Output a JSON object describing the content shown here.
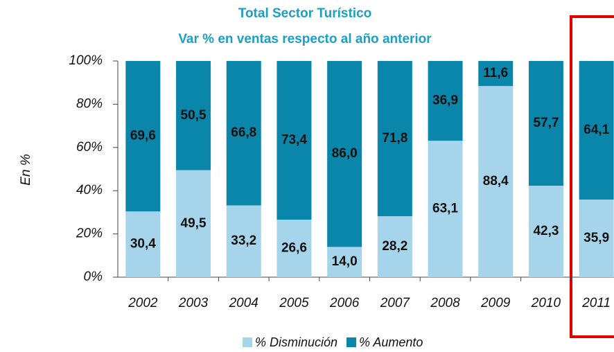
{
  "chart_data": {
    "type": "stacked_bar",
    "title": "Total Sector Turístico",
    "subtitle": "Var % en ventas respecto al año anterior",
    "y_label": "En %",
    "categories": [
      "2002",
      "2003",
      "2004",
      "2005",
      "2006",
      "2007",
      "2008",
      "2009",
      "2010",
      "2011"
    ],
    "series": [
      {
        "name": "% Disminución",
        "color": "#a6d4ea",
        "values": [
          30.4,
          49.5,
          33.2,
          26.6,
          14.0,
          28.2,
          63.1,
          88.4,
          42.3,
          35.9
        ],
        "value_labels": [
          "30,4",
          "49,5",
          "33,2",
          "26,6",
          "14,0",
          "28,2",
          "63,1",
          "88,4",
          "42,3",
          "35,9"
        ]
      },
      {
        "name": "% Aumento",
        "color": "#0a86aa",
        "values": [
          69.6,
          50.5,
          66.8,
          73.4,
          86.0,
          71.8,
          36.9,
          11.6,
          57.7,
          64.1
        ],
        "value_labels": [
          "69,6",
          "50,5",
          "66,8",
          "73,4",
          "86,0",
          "71,8",
          "36,9",
          "11,6",
          "57,7",
          "64,1"
        ]
      }
    ],
    "ylim": [
      0,
      100
    ],
    "yticks": [
      {
        "value": 0,
        "label": "0%"
      },
      {
        "value": 20,
        "label": "20%"
      },
      {
        "value": 40,
        "label": "40%"
      },
      {
        "value": 60,
        "label": "60%"
      },
      {
        "value": 80,
        "label": "80%"
      },
      {
        "value": 100,
        "label": "100%"
      }
    ],
    "legend": "bottom"
  }
}
